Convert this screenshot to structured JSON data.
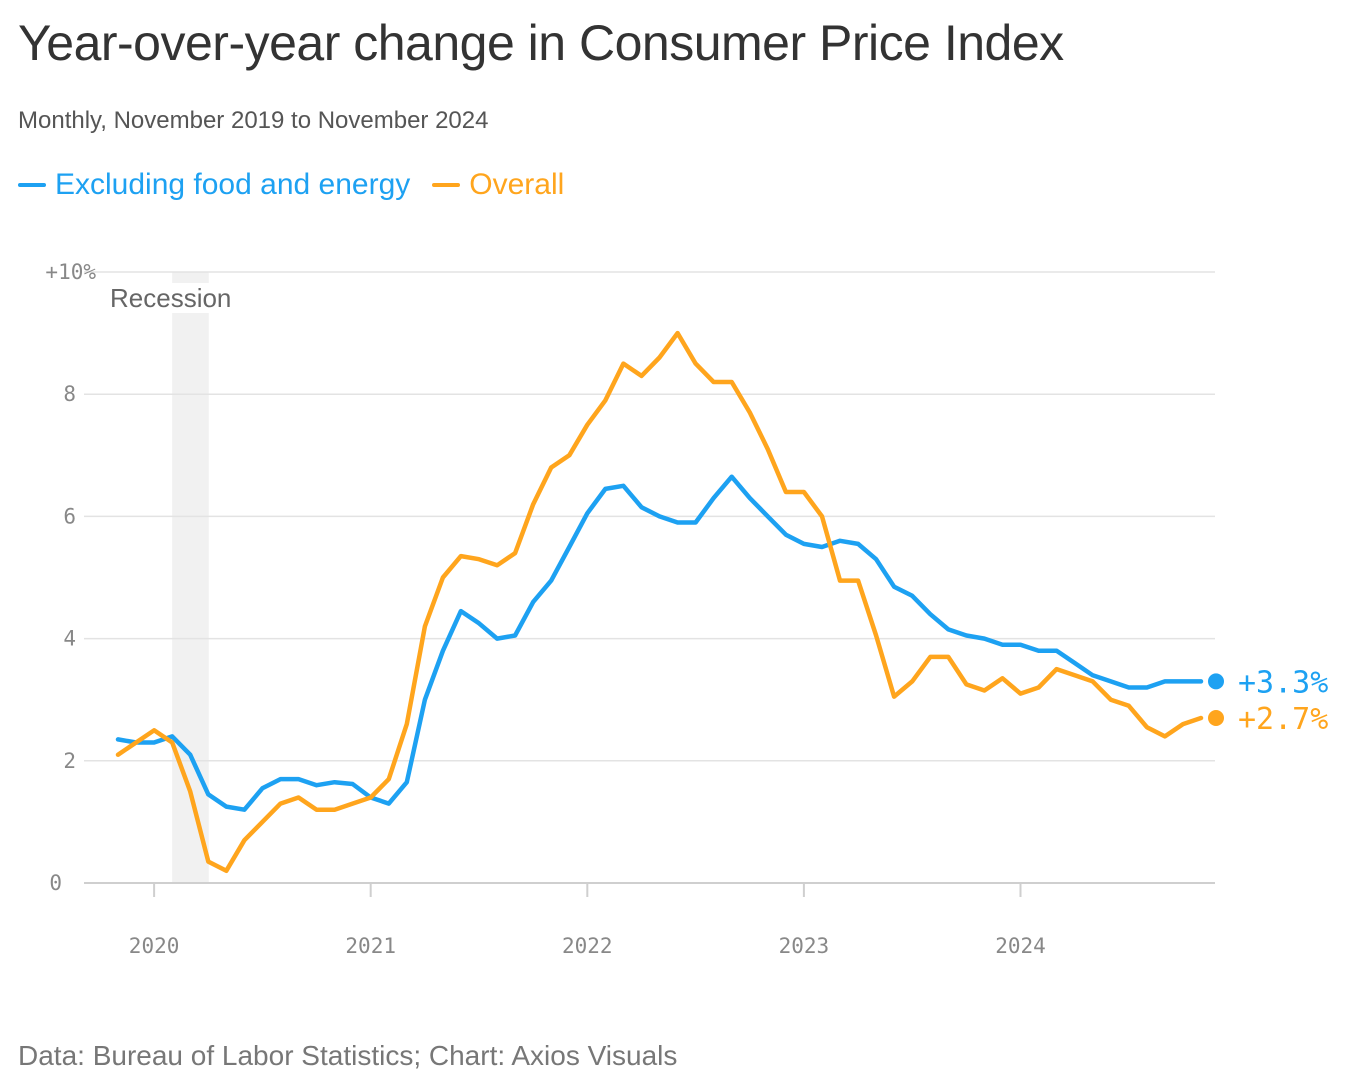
{
  "chart_data": {
    "type": "line",
    "title": "Year-over-year change in Consumer Price Index",
    "subtitle": "Monthly, November 2019 to November 2024",
    "source": "Data: Bureau of Labor Statistics; Chart: Axios Visuals",
    "x_start": "2019-11",
    "x_end": "2024-11",
    "x_ticks": [
      "2020",
      "2021",
      "2022",
      "2023",
      "2024"
    ],
    "y_ticks": [
      "0",
      "2",
      "4",
      "6",
      "8",
      "+10%"
    ],
    "ylim": [
      0,
      10
    ],
    "grid": true,
    "legend_position": "top-left",
    "annotation": {
      "label": "Recession",
      "start": "2020-02",
      "end": "2020-04"
    },
    "series": [
      {
        "name": "Excluding food and energy",
        "color": "#1da1f2",
        "end_label": "+3.3%",
        "values": [
          2.35,
          2.3,
          2.3,
          2.4,
          2.1,
          1.45,
          1.25,
          1.2,
          1.55,
          1.7,
          1.7,
          1.6,
          1.65,
          1.62,
          1.4,
          1.3,
          1.65,
          3.0,
          3.8,
          4.45,
          4.25,
          4.0,
          4.05,
          4.6,
          4.95,
          5.5,
          6.05,
          6.45,
          6.5,
          6.15,
          6.0,
          5.9,
          5.9,
          6.3,
          6.65,
          6.3,
          6.0,
          5.7,
          5.55,
          5.5,
          5.6,
          5.55,
          5.3,
          4.85,
          4.7,
          4.4,
          4.15,
          4.05,
          4.0,
          3.9,
          3.9,
          3.8,
          3.8,
          3.6,
          3.4,
          3.3,
          3.2,
          3.2,
          3.3,
          3.3,
          3.3
        ]
      },
      {
        "name": "Overall",
        "color": "#ffa51d",
        "end_label": "+2.7%",
        "values": [
          2.1,
          2.3,
          2.5,
          2.3,
          1.5,
          0.35,
          0.2,
          0.7,
          1.0,
          1.3,
          1.4,
          1.2,
          1.2,
          1.3,
          1.4,
          1.7,
          2.6,
          4.2,
          5.0,
          5.35,
          5.3,
          5.2,
          5.4,
          6.2,
          6.8,
          7.0,
          7.5,
          7.9,
          8.5,
          8.3,
          8.6,
          9.0,
          8.5,
          8.2,
          8.2,
          7.7,
          7.1,
          6.4,
          6.4,
          6.0,
          4.95,
          4.95,
          4.05,
          3.05,
          3.3,
          3.7,
          3.7,
          3.25,
          3.15,
          3.35,
          3.1,
          3.2,
          3.5,
          3.4,
          3.3,
          3.0,
          2.9,
          2.55,
          2.4,
          2.6,
          2.7
        ]
      }
    ]
  }
}
